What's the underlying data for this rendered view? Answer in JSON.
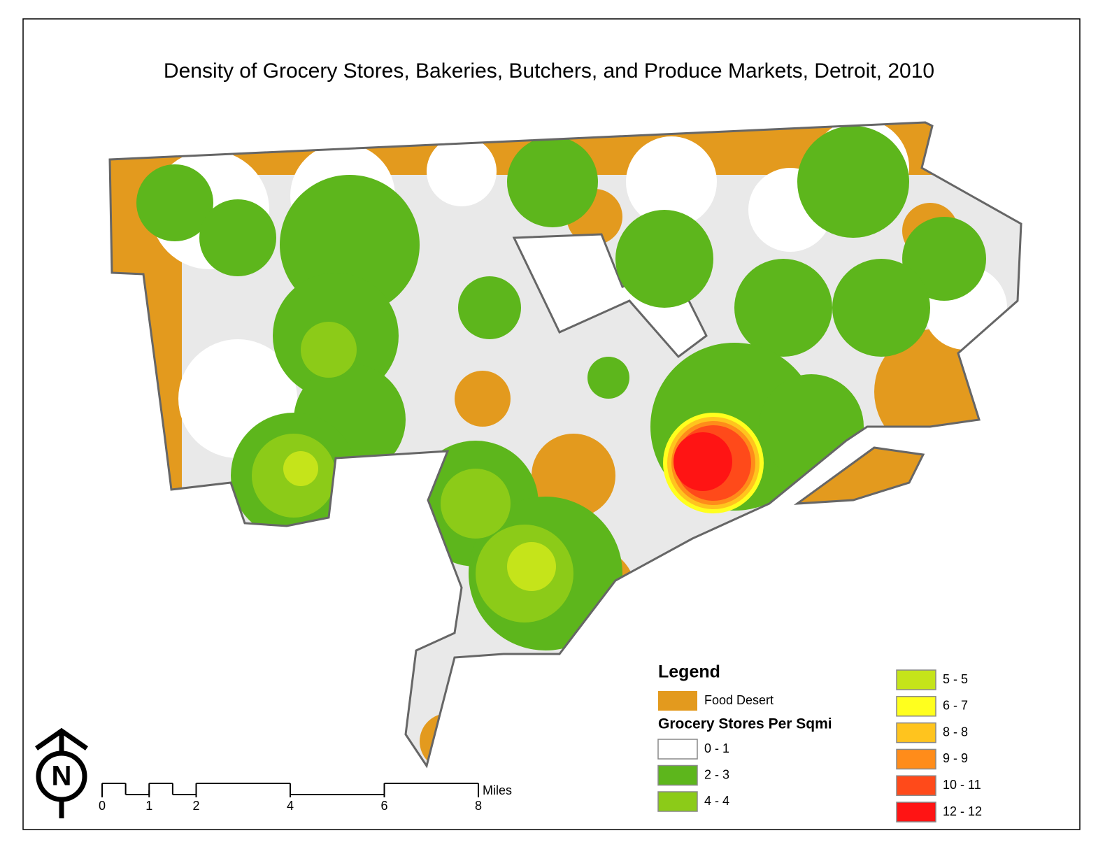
{
  "title": "Density of Grocery Stores, Bakeries, Butchers, and Produce Markets, Detroit, 2010",
  "legend": {
    "title": "Legend",
    "food_desert": {
      "label": "Food Desert",
      "color": "#e39a1e"
    },
    "density_title": "Grocery Stores Per Sqmi",
    "classes": [
      {
        "label": "0 - 1",
        "color": "#ffffff"
      },
      {
        "label": "2 - 3",
        "color": "#5db61c"
      },
      {
        "label": "4 - 4",
        "color": "#8ccb18"
      },
      {
        "label": "5 - 5",
        "color": "#c5e41a"
      },
      {
        "label": "6 - 7",
        "color": "#ffff1e"
      },
      {
        "label": "8 - 8",
        "color": "#ffc41e"
      },
      {
        "label": "9 - 9",
        "color": "#ff8c1a"
      },
      {
        "label": "10 - 11",
        "color": "#ff4a1a"
      },
      {
        "label": "12 - 12",
        "color": "#ff1414"
      }
    ]
  },
  "scale_bar": {
    "unit": "Miles",
    "ticks": [
      0,
      1,
      2,
      4,
      6,
      8
    ]
  },
  "north_arrow": "N"
}
